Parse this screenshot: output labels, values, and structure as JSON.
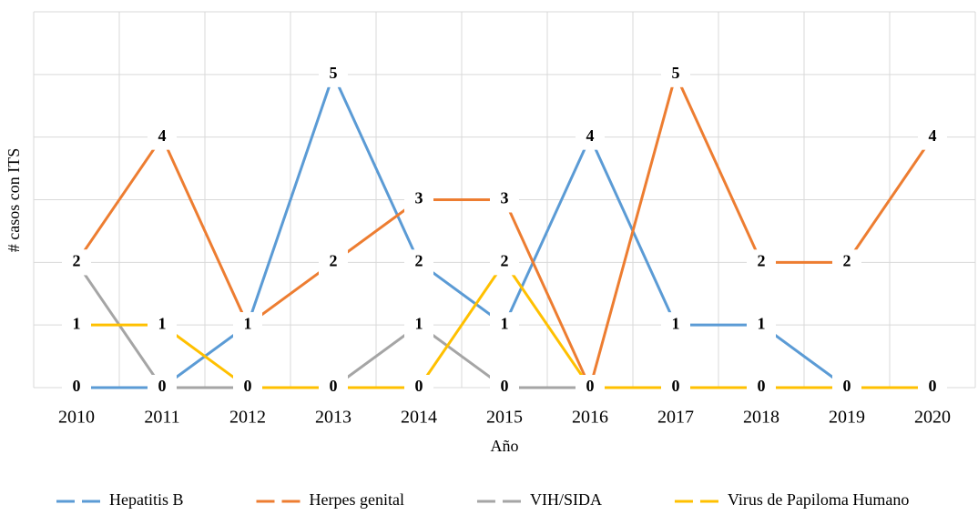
{
  "chart_data": {
    "type": "line",
    "categories": [
      "2010",
      "2011",
      "2012",
      "2013",
      "2014",
      "2015",
      "2016",
      "2017",
      "2018",
      "2019",
      "2020"
    ],
    "series": [
      {
        "name": "Hepatitis B",
        "color": "#5b9bd5",
        "values": [
          0,
          0,
          1,
          5,
          2,
          1,
          4,
          1,
          1,
          0,
          0
        ]
      },
      {
        "name": "Herpes genital",
        "color": "#ed7d31",
        "values": [
          2,
          4,
          1,
          2,
          3,
          3,
          0,
          5,
          2,
          2,
          4
        ]
      },
      {
        "name": "VIH/SIDA",
        "color": "#a5a5a5",
        "values": [
          2,
          0,
          0,
          0,
          1,
          0,
          0,
          0,
          0,
          0,
          0
        ]
      },
      {
        "name": "Virus de Papiloma Humano",
        "color": "#ffc000",
        "values": [
          1,
          1,
          0,
          0,
          0,
          2,
          0,
          0,
          0,
          0,
          0
        ]
      }
    ],
    "xlabel": "Año",
    "ylabel": "# casos con ITS",
    "ylim": [
      0,
      6
    ],
    "yticks": [
      0,
      1,
      2,
      3,
      4,
      5,
      6
    ],
    "grid": true,
    "legend": "bottom"
  }
}
